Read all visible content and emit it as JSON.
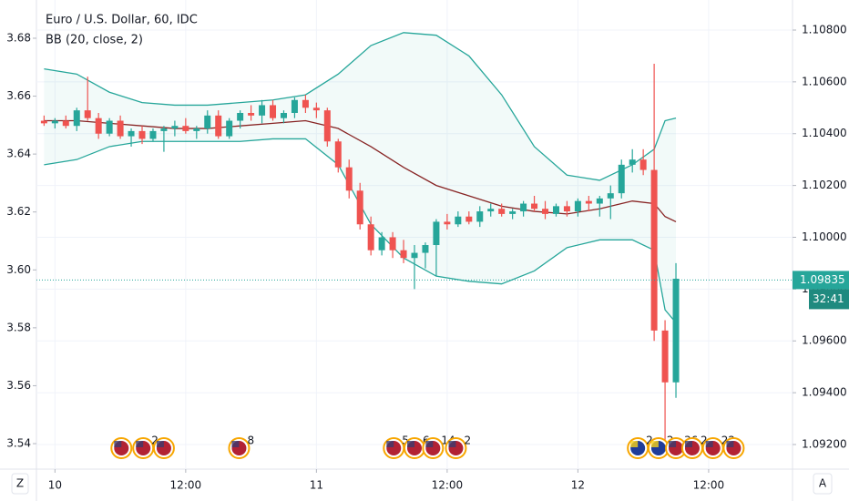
{
  "chart_data": {
    "type": "candlestick",
    "title": "Euro / U.S. Dollar, 60, IDC",
    "indicator": "BB (20, close, 2)",
    "x": [
      -1,
      0,
      1,
      2,
      3,
      4,
      5,
      6,
      7,
      8,
      9,
      10,
      11,
      12,
      13,
      14,
      15,
      16,
      17,
      18,
      19,
      20,
      21,
      22,
      23,
      24,
      25,
      26,
      27,
      28,
      29,
      30,
      31,
      32,
      33,
      34,
      35,
      36,
      37,
      38,
      39,
      40,
      41,
      42,
      43,
      44,
      45,
      46,
      47,
      48,
      49,
      50,
      51,
      52,
      53,
      54,
      55,
      56,
      57
    ],
    "open": [
      1.1045,
      1.1044,
      1.1045,
      1.1043,
      1.1049,
      1.1046,
      1.104,
      1.1045,
      1.1039,
      1.1041,
      1.1038,
      1.1041,
      1.1042,
      1.1043,
      1.1041,
      1.1042,
      1.1047,
      1.1039,
      1.1045,
      1.1048,
      1.1047,
      1.1051,
      1.1046,
      1.1048,
      1.1053,
      1.105,
      1.1049,
      1.1037,
      1.1027,
      1.1018,
      1.1005,
      1.0995,
      1.1,
      1.0995,
      1.0992,
      1.0994,
      1.0997,
      1.1006,
      1.1005,
      1.1008,
      1.1006,
      1.101,
      1.1011,
      1.1009,
      1.101,
      1.1013,
      1.1011,
      1.1009,
      1.1012,
      1.101,
      1.1014,
      1.1013,
      1.1015,
      1.1017,
      1.1028,
      1.103,
      1.1026,
      1.0964,
      1.0944
    ],
    "high": [
      1.1047,
      1.1046,
      1.1047,
      1.105,
      1.1062,
      1.1048,
      1.1046,
      1.1047,
      1.1042,
      1.1043,
      1.1042,
      1.1043,
      1.1045,
      1.1046,
      1.1043,
      1.1049,
      1.1049,
      1.1046,
      1.1049,
      1.1051,
      1.1053,
      1.1053,
      1.1049,
      1.1054,
      1.1055,
      1.1052,
      1.105,
      1.1038,
      1.103,
      1.1021,
      1.1008,
      1.1002,
      1.1002,
      1.0999,
      1.0997,
      1.0998,
      1.1007,
      1.1009,
      1.101,
      1.101,
      1.1012,
      1.1013,
      1.1013,
      1.1011,
      1.1014,
      1.1016,
      1.1014,
      1.1013,
      1.1014,
      1.1015,
      1.1016,
      1.1016,
      1.102,
      1.103,
      1.1034,
      1.1034,
      1.1067,
      1.0968,
      1.099
    ],
    "low": [
      1.1043,
      1.1042,
      1.1042,
      1.1041,
      1.1045,
      1.1038,
      1.1039,
      1.1038,
      1.1035,
      1.1036,
      1.1037,
      1.1033,
      1.1039,
      1.104,
      1.1038,
      1.104,
      1.1038,
      1.1038,
      1.1042,
      1.1045,
      1.1044,
      1.1045,
      1.1044,
      1.1046,
      1.1048,
      1.1046,
      1.1035,
      1.1025,
      1.1015,
      1.1003,
      1.0993,
      1.0993,
      1.0992,
      1.099,
      1.098,
      1.0988,
      1.0985,
      1.1003,
      1.1004,
      1.1005,
      1.1004,
      1.1008,
      1.1008,
      1.1007,
      1.1008,
      1.101,
      1.1007,
      1.1008,
      1.1008,
      1.1008,
      1.101,
      1.1008,
      1.1007,
      1.1015,
      1.1025,
      1.1024,
      1.096,
      1.092,
      1.0938
    ],
    "close": [
      1.1044,
      1.1045,
      1.1043,
      1.1049,
      1.1046,
      1.104,
      1.1045,
      1.1039,
      1.1041,
      1.1038,
      1.1041,
      1.1042,
      1.1043,
      1.1041,
      1.1042,
      1.1047,
      1.1039,
      1.1045,
      1.1048,
      1.1047,
      1.1051,
      1.1046,
      1.1048,
      1.1053,
      1.105,
      1.1049,
      1.1037,
      1.1027,
      1.1018,
      1.1005,
      1.0995,
      1.1,
      1.0995,
      1.0992,
      1.0994,
      1.0997,
      1.1006,
      1.1005,
      1.1008,
      1.1006,
      1.101,
      1.1011,
      1.1009,
      1.101,
      1.1013,
      1.1011,
      1.1009,
      1.1012,
      1.101,
      1.1014,
      1.1013,
      1.1015,
      1.1017,
      1.1028,
      1.103,
      1.1026,
      1.0964,
      1.0944,
      1.0984
    ],
    "up_color": "#26a69a",
    "down_color": "#ef5350",
    "bands": {
      "x": [
        -1,
        2,
        5,
        8,
        11,
        14,
        17,
        20,
        23,
        26,
        29,
        32,
        35,
        38,
        41,
        44,
        47,
        50,
        53,
        55,
        56,
        57
      ],
      "upper": [
        1.1065,
        1.1063,
        1.1056,
        1.1052,
        1.1051,
        1.1051,
        1.1052,
        1.1053,
        1.1055,
        1.1063,
        1.1074,
        1.1079,
        1.1078,
        1.107,
        1.1055,
        1.1035,
        1.1024,
        1.1022,
        1.1028,
        1.1034,
        1.1045,
        1.1046
      ],
      "middle": [
        1.1045,
        1.1045,
        1.1044,
        1.1043,
        1.1042,
        1.1042,
        1.1043,
        1.1044,
        1.1045,
        1.1042,
        1.1035,
        1.1027,
        1.102,
        1.1016,
        1.1012,
        1.101,
        1.1009,
        1.1011,
        1.1014,
        1.1013,
        1.1008,
        1.1006
      ],
      "lower": [
        1.1028,
        1.103,
        1.1035,
        1.1037,
        1.1037,
        1.1037,
        1.1037,
        1.1038,
        1.1038,
        1.1028,
        1.1005,
        1.0992,
        1.0985,
        1.0983,
        1.0982,
        1.0987,
        1.0996,
        1.0999,
        1.0999,
        1.0995,
        1.0972,
        1.0967
      ],
      "band_color": "#26a69a",
      "middle_color": "#872323",
      "fill": "rgba(38,166,154,0.06)"
    },
    "xlim": [
      -1.7,
      67.7
    ],
    "xticks": [
      {
        "value": 0,
        "label": "10"
      },
      {
        "value": 12,
        "label": "12:00"
      },
      {
        "value": 24,
        "label": "11"
      },
      {
        "value": 36,
        "label": "12:00"
      },
      {
        "value": 48,
        "label": "12"
      },
      {
        "value": 60,
        "label": "12:00"
      }
    ],
    "ylim": [
      3.5312,
      3.6932
    ],
    "yticks": [
      3.54,
      3.56,
      3.58,
      {
        "value": 3.6,
        "label": "3.60"
      },
      3.62,
      3.64,
      3.66,
      3.68
    ],
    "y2lim": [
      1.09105,
      1.10916
    ],
    "y2ticks": [
      {
        "value": 1.092,
        "label": "1.09200"
      },
      {
        "value": 1.094,
        "label": "1.09400"
      },
      {
        "value": 1.096,
        "label": "1.09600"
      },
      {
        "value": 1.098,
        "label": "1.09800"
      },
      {
        "value": 1.1,
        "label": "1.10000"
      },
      {
        "value": 1.102,
        "label": "1.10200"
      },
      {
        "value": 1.104,
        "label": "1.10400"
      },
      {
        "value": 1.106,
        "label": "1.10600"
      },
      {
        "value": 1.108,
        "label": "1.10800"
      }
    ],
    "last_price": 1.09835,
    "countdown": "32:41",
    "grid": true,
    "events": [
      {
        "x": 6.1,
        "count": null,
        "color": "#b22234"
      },
      {
        "x": 8.1,
        "count": 2,
        "color": "#b22234"
      },
      {
        "x": 10.0,
        "count": null,
        "color": "#b22234"
      },
      {
        "x": 16.9,
        "count": 8,
        "color": "#b22234"
      },
      {
        "x": 31.1,
        "count": 5,
        "color": "#b22234"
      },
      {
        "x": 33.0,
        "count": 6,
        "color": "#b22234"
      },
      {
        "x": 34.7,
        "count": 14,
        "color": "#b22234"
      },
      {
        "x": 36.8,
        "count": 2,
        "color": "#b22234"
      },
      {
        "x": 53.5,
        "count": 2,
        "color": "#1f3c99"
      },
      {
        "x": 55.4,
        "count": 2,
        "color": "#1f3c99"
      },
      {
        "x": 57.0,
        "count": 36,
        "color": "#b22234"
      },
      {
        "x": 58.5,
        "count": 2,
        "color": "#b22234"
      },
      {
        "x": 60.4,
        "count": 22,
        "color": "#b22234"
      },
      {
        "x": 62.3,
        "count": null,
        "color": "#b22234"
      }
    ]
  },
  "controls": {
    "left": "Z",
    "right": "A"
  }
}
